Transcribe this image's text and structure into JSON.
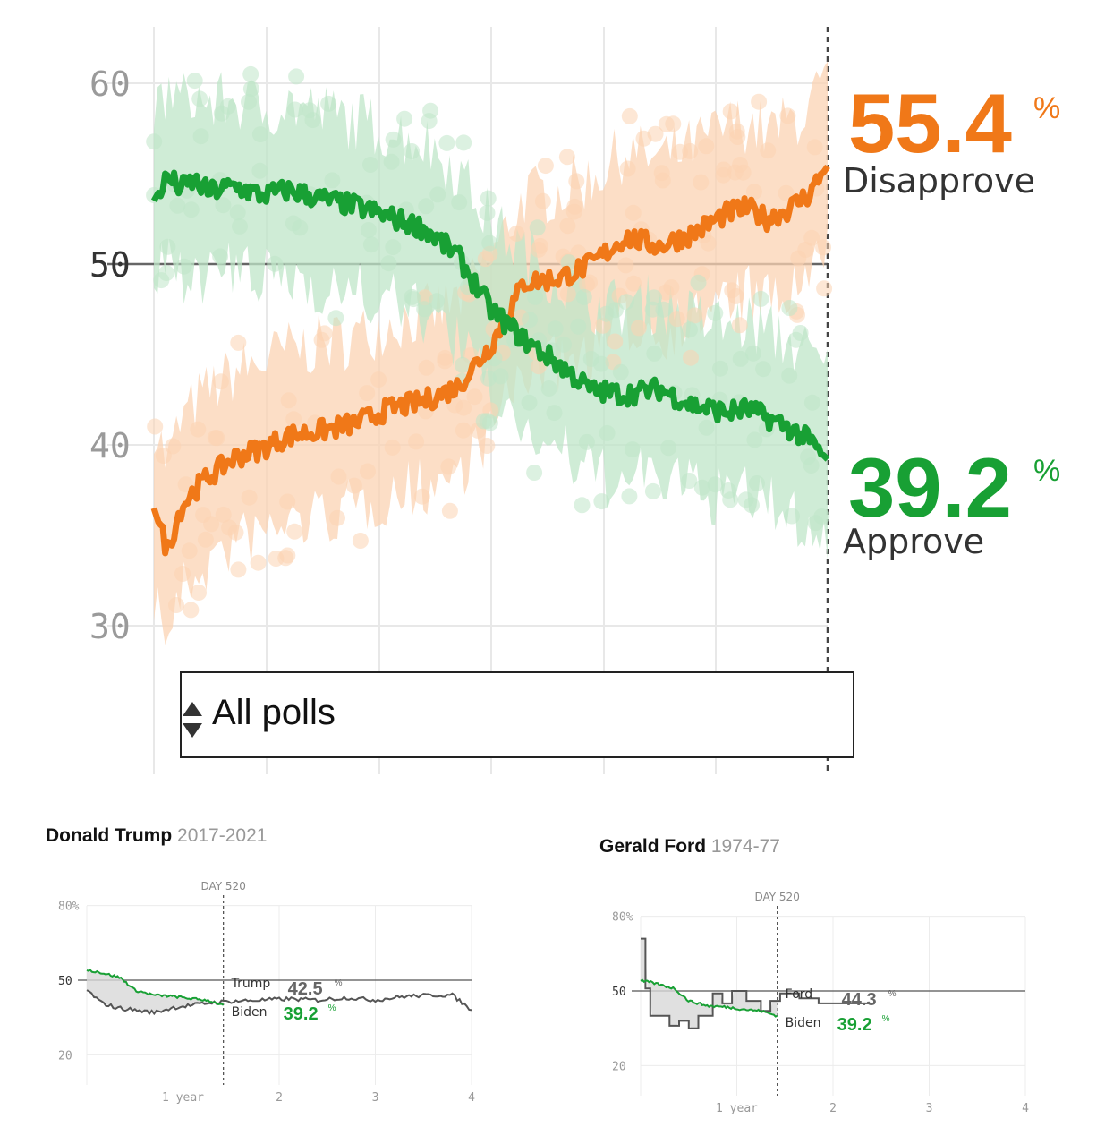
{
  "chart_data": [
    {
      "type": "line",
      "title": "",
      "ylim": [
        25,
        63
      ],
      "yticks": [
        30,
        40,
        50,
        60
      ],
      "reference_line": 50,
      "series": [
        {
          "name": "Disapprove",
          "color": "#f07818",
          "current_value": "55.4",
          "x": [
            0,
            2,
            4,
            6,
            8,
            12,
            16,
            20,
            25,
            30,
            35,
            40,
            45,
            50,
            55,
            60,
            65,
            70,
            75,
            80,
            85,
            88,
            91,
            94,
            97,
            100
          ],
          "values": [
            36.5,
            34.2,
            36.5,
            37.5,
            38.2,
            39.3,
            39.8,
            40.5,
            40.8,
            41.2,
            42.0,
            42.4,
            43.2,
            45.5,
            49.0,
            49.2,
            50.0,
            51.5,
            51.0,
            51.7,
            52.8,
            53.1,
            52.5,
            53.0,
            53.8,
            55.4
          ]
        },
        {
          "name": "Approve",
          "color": "#18a034",
          "current_value": "39.2",
          "x": [
            0,
            2,
            4,
            6,
            8,
            12,
            16,
            20,
            25,
            30,
            35,
            40,
            45,
            50,
            55,
            60,
            65,
            70,
            75,
            80,
            85,
            88,
            91,
            94,
            97,
            100
          ],
          "values": [
            53.5,
            54.8,
            54.2,
            54.6,
            54.0,
            54.3,
            53.8,
            54.1,
            53.6,
            53.2,
            52.6,
            52.0,
            50.5,
            47.5,
            45.8,
            44.5,
            43.0,
            42.8,
            43.1,
            42.2,
            41.8,
            42.0,
            41.5,
            41.0,
            40.3,
            39.2
          ]
        }
      ],
      "legend": {
        "disapprove": {
          "value": "55.4",
          "pct": "%",
          "label": "Disapprove"
        },
        "approve": {
          "value": "39.2",
          "pct": "%",
          "label": "Approve"
        }
      }
    },
    {
      "type": "line",
      "title": "Donald Trump",
      "years": "2017-2021",
      "day_marker": "DAY 520",
      "yticks": [
        "80%",
        "50",
        "20"
      ],
      "xticks": [
        "1 year",
        "2",
        "3",
        "4"
      ],
      "series": [
        {
          "name": "Biden",
          "color": "#18a034",
          "value": "39.2",
          "pct": "%",
          "x": [
            0,
            0.1,
            0.2,
            0.35,
            0.5,
            0.7,
            0.9,
            1.1,
            1.25,
            1.42
          ],
          "values": [
            54,
            53.5,
            52.5,
            51,
            46,
            44,
            43.5,
            42.5,
            42,
            40
          ]
        },
        {
          "name": "Trump",
          "color": "#555555",
          "value": "42.5",
          "pct": "%",
          "x": [
            0,
            0.15,
            0.3,
            0.5,
            0.7,
            0.9,
            1.1,
            1.3,
            1.5,
            1.8,
            2.1,
            2.4,
            2.7,
            3.0,
            3.3,
            3.6,
            3.8,
            4.0
          ],
          "values": [
            46,
            41,
            39,
            38,
            37,
            39,
            40,
            41,
            41.5,
            42,
            42.5,
            42,
            43,
            42,
            43.5,
            44,
            44,
            38
          ]
        }
      ]
    },
    {
      "type": "line",
      "title": "Gerald Ford",
      "years": "1974-77",
      "day_marker": "DAY 520",
      "yticks": [
        "80%",
        "50",
        "20"
      ],
      "xticks": [
        "1 year",
        "2",
        "3",
        "4"
      ],
      "series": [
        {
          "name": "Biden",
          "color": "#18a034",
          "value": "39.2",
          "pct": "%",
          "x": [
            0,
            0.1,
            0.2,
            0.35,
            0.5,
            0.7,
            0.9,
            1.1,
            1.25,
            1.42
          ],
          "values": [
            54,
            53.5,
            52.5,
            51,
            46,
            44,
            43.5,
            42.5,
            42,
            40
          ]
        },
        {
          "name": "Ford",
          "color": "#555555",
          "value": "44.3",
          "pct": "%",
          "x": [
            0,
            0.05,
            0.05,
            0.1,
            0.1,
            0.3,
            0.3,
            0.4,
            0.4,
            0.5,
            0.5,
            0.6,
            0.6,
            0.75,
            0.75,
            0.85,
            0.85,
            0.95,
            0.95,
            1.1,
            1.1,
            1.25,
            1.25,
            1.35,
            1.35,
            1.45,
            1.45,
            1.65,
            1.65,
            1.85,
            1.85,
            2.05,
            2.05,
            2.4
          ],
          "values": [
            71,
            71,
            51,
            51,
            40,
            40,
            36,
            36,
            38,
            38,
            35,
            35,
            40,
            40,
            49,
            49,
            45,
            45,
            50,
            50,
            46,
            46,
            42,
            42,
            46,
            46,
            49,
            49,
            47,
            47,
            45,
            45,
            45,
            45
          ]
        }
      ]
    }
  ],
  "filter": {
    "selected": "All polls"
  }
}
